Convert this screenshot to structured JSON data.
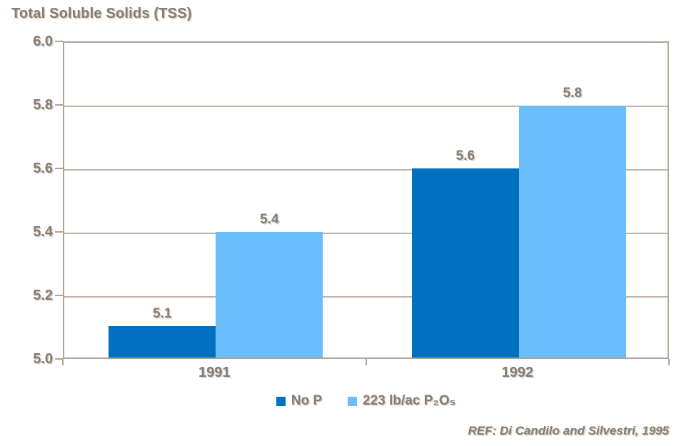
{
  "ref_text": "REF: Di Candilo and Silvestri, 1995",
  "colors": {
    "text": "#8A7A6A",
    "axis": "#AFA395",
    "grid": "#BFB4A8",
    "background": "#FFFFFF",
    "series": [
      "#0070C0",
      "#6ABEFB"
    ]
  },
  "chart_data": {
    "type": "bar",
    "title": "Total Soluble Solids (TSS)",
    "categories": [
      "1991",
      "1992"
    ],
    "series": [
      {
        "name": "No P",
        "color": "#0070C0",
        "values": [
          5.1,
          5.6
        ]
      },
      {
        "name": "223 lb/ac P₂O₅",
        "color": "#6ABEFB",
        "values": [
          5.4,
          5.8
        ]
      }
    ],
    "data_labels": [
      [
        "5.1",
        "5.6"
      ],
      [
        "5.4",
        "5.8"
      ]
    ],
    "ylim": [
      5.0,
      6.0
    ],
    "yticks": [
      5.0,
      5.2,
      5.4,
      5.6,
      5.8,
      6.0
    ],
    "ytick_labels": [
      "5.0",
      "5.2",
      "5.4",
      "5.6",
      "5.8",
      "6.0"
    ],
    "xlabel": "",
    "ylabel": "",
    "grid": true,
    "legend_position": "bottom",
    "annotation": "REF: Di Candilo and Silvestri, 1995"
  }
}
